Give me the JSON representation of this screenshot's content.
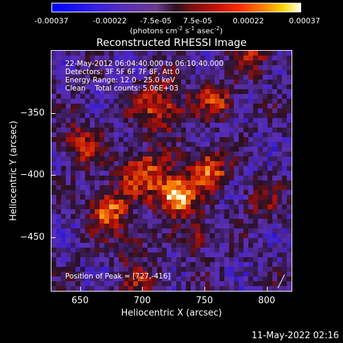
{
  "colorbar": {
    "ticks": [
      "-0.00037",
      "-0.00022",
      "-7.5e-05",
      "7.5e-05",
      "0.00022",
      "0.00037"
    ],
    "unit_prefix": "(photons cm",
    "unit_exp1": "-2",
    "unit_mid": " s",
    "unit_exp2": "-1",
    "unit_mid2": " asec",
    "unit_exp3": "-2",
    "unit_suffix": ")"
  },
  "chart_data": {
    "type": "heatmap",
    "title": "Reconstructed RHESSI Image",
    "xlabel": "Heliocentric X (arcsec)",
    "ylabel": "Heliocentric Y (arcsec)",
    "xlim": [
      627,
      820
    ],
    "ylim": [
      -493,
      -300
    ],
    "xticks": [
      650,
      700,
      750,
      800
    ],
    "yticks": [
      -350,
      -400,
      -450
    ],
    "x_tick_labels": [
      "650",
      "700",
      "750",
      "800"
    ],
    "y_tick_labels": [
      "−350",
      "−400",
      "−450"
    ],
    "value_range": [
      -0.00037,
      0.00037
    ],
    "colormap": [
      "#0000ff",
      "#5a2fb5",
      "#2a1020",
      "#c01008",
      "#ff8a00",
      "#ffffe8"
    ],
    "peak": [
      727,
      -416
    ],
    "sources": [
      {
        "x": 727,
        "y": -416,
        "intensity": 1.0,
        "radius": 11
      },
      {
        "x": 672,
        "y": -428,
        "intensity": 0.75,
        "radius": 10
      },
      {
        "x": 754,
        "y": -395,
        "intensity": 0.7,
        "radius": 10
      },
      {
        "x": 700,
        "y": -398,
        "intensity": 0.6,
        "radius": 13
      },
      {
        "x": 715,
        "y": -345,
        "intensity": 0.55,
        "radius": 14
      },
      {
        "x": 760,
        "y": -340,
        "intensity": 0.5,
        "radius": 10
      },
      {
        "x": 650,
        "y": -375,
        "intensity": 0.45,
        "radius": 12
      },
      {
        "x": 745,
        "y": -448,
        "intensity": 0.4,
        "radius": 9
      },
      {
        "x": 690,
        "y": -455,
        "intensity": 0.35,
        "radius": 9
      },
      {
        "x": 795,
        "y": -420,
        "intensity": 0.3,
        "radius": 10
      },
      {
        "x": 700,
        "y": -485,
        "intensity": 0.35,
        "radius": 10
      },
      {
        "x": 790,
        "y": -305,
        "intensity": 0.4,
        "radius": 10
      }
    ]
  },
  "overlay": {
    "line1": "22-May-2012 06:04:40.000 to 06:10:40.000",
    "line2": "Detectors: 3F 5F 6F 7F 8F, Att 0",
    "line3": "Energy Range: 12.0 - 25.0 keV",
    "line4": "Clean    Total counts: 5.06E+03",
    "peak_label": "Position of Peak = [727,-416]"
  },
  "footer": "11-May-2022 02:16"
}
